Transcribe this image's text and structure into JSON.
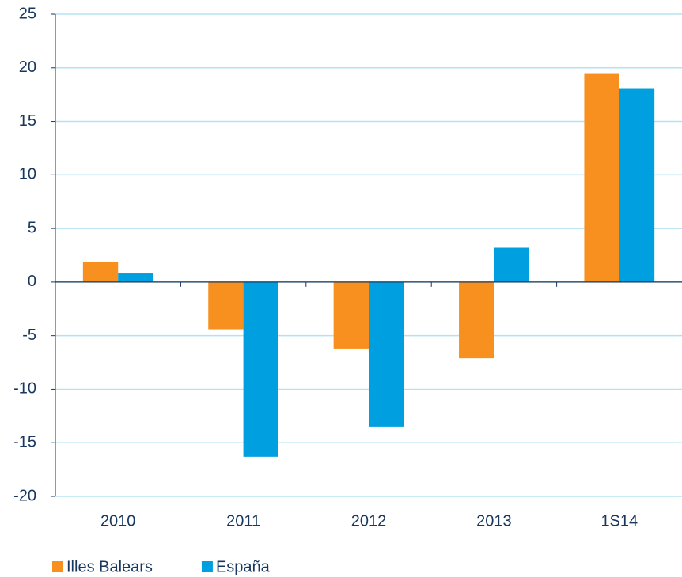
{
  "chart_data": {
    "type": "bar",
    "categories": [
      "2010",
      "2011",
      "2012",
      "2013",
      "1S14"
    ],
    "series": [
      {
        "name": "Illes Balears",
        "color": "#f7901e",
        "values": [
          1.9,
          -4.4,
          -6.2,
          -7.1,
          19.5
        ]
      },
      {
        "name": "España",
        "color": "#00a0e0",
        "values": [
          0.8,
          -16.3,
          -13.5,
          3.2,
          18.1
        ]
      }
    ],
    "ylim": [
      -20,
      25
    ],
    "yticks": [
      -20,
      -15,
      -10,
      -5,
      0,
      5,
      10,
      15,
      20,
      25
    ],
    "grid": true
  }
}
